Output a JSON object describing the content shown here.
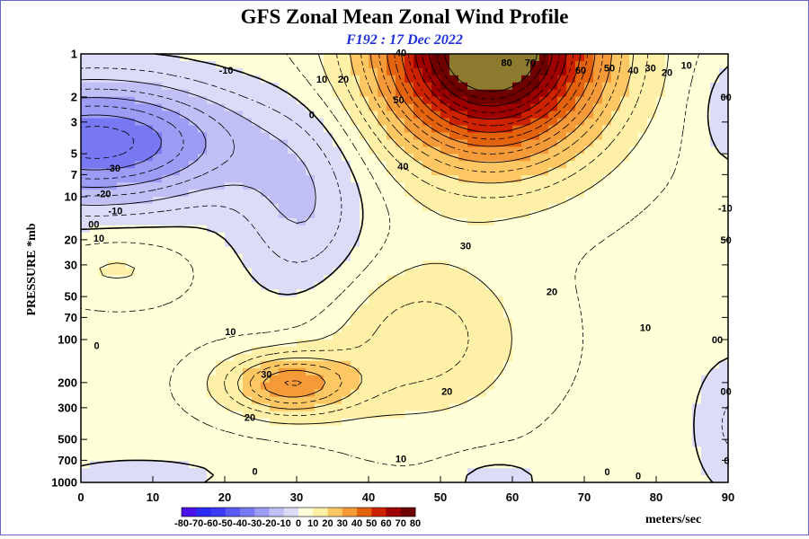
{
  "chart_data": {
    "type": "filled-contour",
    "title": "GFS Zonal Mean Zonal Wind Profile",
    "subtitle": "F192 : 17 Dec 2022",
    "xlabel": "",
    "ylabel": "PRESSURE *mb",
    "xlim": [
      0,
      90
    ],
    "ylim_pressure": [
      1000,
      1
    ],
    "y_scale": "log",
    "x_ticks": [
      "0",
      "10",
      "20",
      "30",
      "40",
      "50",
      "60",
      "70",
      "80",
      "90"
    ],
    "y_ticks": [
      "1",
      "2",
      "3",
      "5",
      "7",
      "10",
      "20",
      "30",
      "50",
      "70",
      "100",
      "200",
      "300",
      "500",
      "700",
      "1000"
    ],
    "y_tick_values": [
      1,
      2,
      3,
      5,
      7,
      10,
      20,
      30,
      50,
      70,
      100,
      200,
      300,
      500,
      700,
      1000
    ],
    "colorbar": {
      "labels": [
        "-80",
        "-70",
        "-60",
        "-50",
        "-40",
        "-30",
        "-20",
        "-10",
        "0",
        "10",
        "20",
        "30",
        "40",
        "50",
        "60",
        "70",
        "80"
      ],
      "colors": [
        "#8c10d0",
        "#4a10e8",
        "#2a2af5",
        "#3a3af8",
        "#5a5af5",
        "#7878f3",
        "#9c9cf5",
        "#c0c0f6",
        "#dcdcf8",
        "#ffffd8",
        "#fff0a8",
        "#fdc864",
        "#f59a38",
        "#e2620e",
        "#cc2200",
        "#9c0000",
        "#6e0000",
        "#8c7a2e"
      ],
      "units": "meters/sec"
    },
    "field": {
      "description": "zonal-mean zonal wind (m/s) by latitude (deg) and pressure (mb)",
      "features": [
        {
          "name": "polar-night-jet",
          "lat": 57,
          "p": 1,
          "max": 90
        },
        {
          "name": "subtropical-jet",
          "lat": 30,
          "p": 200,
          "max": 35
        },
        {
          "name": "stratospheric-easterlies",
          "lat": 2,
          "p": 4,
          "min": -35
        },
        {
          "name": "weak-westerlies",
          "lat": 5,
          "p": 30,
          "max": 12
        },
        {
          "name": "polar-easterlies",
          "lat": 88,
          "p": 300,
          "min": -5
        },
        {
          "name": "surface-easterlies",
          "lat": 58,
          "p": 800,
          "min": -5
        }
      ]
    },
    "contour_labels": [
      {
        "text": "-10",
        "lat": 20.2,
        "p": 1.3
      },
      {
        "text": "10",
        "lat": 33.5,
        "p": 1.5
      },
      {
        "text": "20",
        "lat": 36.5,
        "p": 1.5
      },
      {
        "text": "40",
        "lat": 44.5,
        "p": 0.98
      },
      {
        "text": "50",
        "lat": 44.2,
        "p": 2.1
      },
      {
        "text": "40",
        "lat": 44.8,
        "p": 6.1
      },
      {
        "text": "80",
        "lat": 59.2,
        "p": 1.15
      },
      {
        "text": "70",
        "lat": 62.5,
        "p": 1.15
      },
      {
        "text": "60",
        "lat": 69.5,
        "p": 1.3
      },
      {
        "text": "50",
        "lat": 73.5,
        "p": 1.25
      },
      {
        "text": "40",
        "lat": 76.8,
        "p": 1.3
      },
      {
        "text": "30",
        "lat": 79.2,
        "p": 1.25
      },
      {
        "text": "20",
        "lat": 81.5,
        "p": 1.35
      },
      {
        "text": "10",
        "lat": 84.2,
        "p": 1.2
      },
      {
        "text": "0",
        "lat": 32.1,
        "p": 2.65
      },
      {
        "text": "00",
        "lat": 89.7,
        "p": 2
      },
      {
        "text": "-30",
        "lat": 4.5,
        "p": 6.3
      },
      {
        "text": "-20",
        "lat": 3.2,
        "p": 9.5
      },
      {
        "text": "-10",
        "lat": 4.8,
        "p": 12.5
      },
      {
        "text": "00",
        "lat": 1.8,
        "p": 15.5
      },
      {
        "text": "10",
        "lat": 2.5,
        "p": 19.5
      },
      {
        "text": "-10",
        "lat": 89.6,
        "p": 12
      },
      {
        "text": "30",
        "lat": 53.5,
        "p": 22
      },
      {
        "text": "20",
        "lat": 65.5,
        "p": 46
      },
      {
        "text": "50",
        "lat": 89.7,
        "p": 20
      },
      {
        "text": "10",
        "lat": 20.8,
        "p": 88
      },
      {
        "text": "10",
        "lat": 78.5,
        "p": 82
      },
      {
        "text": "00",
        "lat": 88.5,
        "p": 100
      },
      {
        "text": "0",
        "lat": 2.2,
        "p": 110
      },
      {
        "text": "30",
        "lat": 25.8,
        "p": 175
      },
      {
        "text": "20",
        "lat": 50.9,
        "p": 230
      },
      {
        "text": "20",
        "lat": 23.5,
        "p": 350
      },
      {
        "text": "00",
        "lat": 89.7,
        "p": 230
      },
      {
        "text": "10",
        "lat": 44.5,
        "p": 680
      },
      {
        "text": "0",
        "lat": 24.2,
        "p": 835
      },
      {
        "text": "0",
        "lat": 73.2,
        "p": 840
      },
      {
        "text": "0",
        "lat": 77.5,
        "p": 900
      },
      {
        "text": "0",
        "lat": 89.8,
        "p": 700
      }
    ]
  }
}
